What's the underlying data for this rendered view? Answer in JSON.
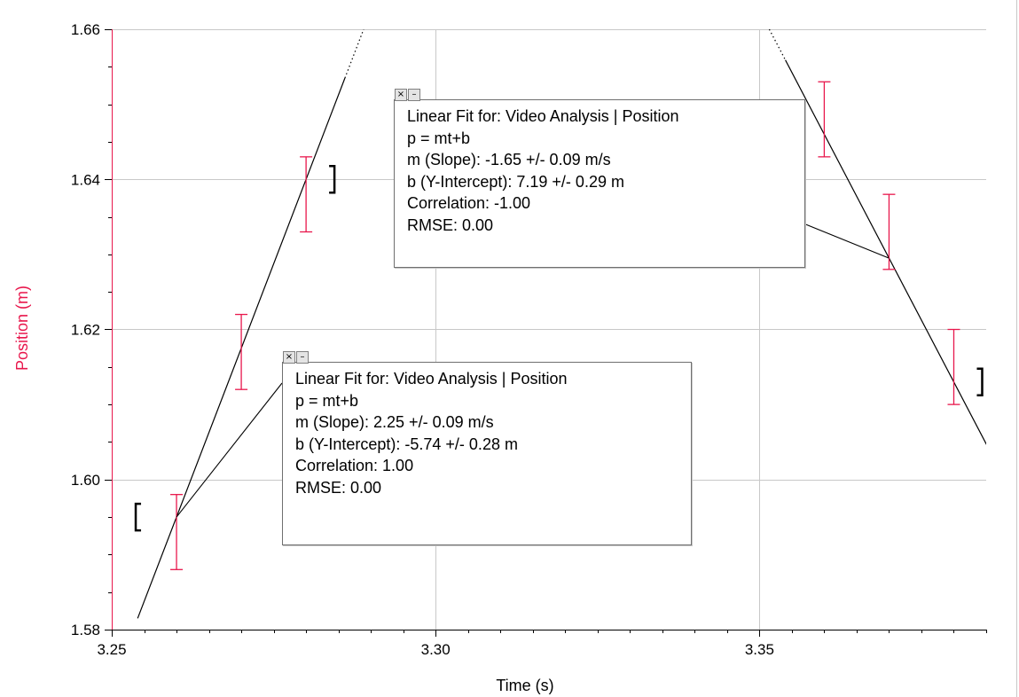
{
  "chart_data": {
    "type": "scatter",
    "xlabel": "Time (s)",
    "ylabel": "Position (m)",
    "xlim": [
      3.25,
      3.385
    ],
    "ylim": [
      1.58,
      1.66
    ],
    "x_ticks": [
      "3.25",
      "3.30",
      "3.35"
    ],
    "y_ticks": [
      "1.58",
      "1.60",
      "1.62",
      "1.64",
      "1.66"
    ],
    "grid": true,
    "series": [
      {
        "x": [
          3.26,
          3.27,
          3.28,
          3.36,
          3.37,
          3.38
        ],
        "y": [
          1.593,
          1.617,
          1.638,
          1.648,
          1.633,
          1.615
        ],
        "y_error": 0.005,
        "color": "#e8174c"
      }
    ],
    "fits": [
      {
        "label": "Linear Fit for:  Video Analysis | Position",
        "equation": "p = mt+b",
        "slope": "m (Slope): 2.25 +/- 0.09 m/s",
        "intercept": "b (Y-Intercept): -5.74 +/- 0.28 m",
        "correlation": "Correlation: 1.00",
        "rmse": "RMSE: 0.00",
        "m": 2.25,
        "b": -5.74,
        "x_range": [
          3.26,
          3.28
        ]
      },
      {
        "label": "Linear Fit for:  Video Analysis | Position",
        "equation": "p = mt+b",
        "slope": "m (Slope): -1.65 +/- 0.09 m/s",
        "intercept": "b (Y-Intercept): 7.19 +/- 0.29 m",
        "correlation": "Correlation: -1.00",
        "rmse": "RMSE: 0.00",
        "m": -1.65,
        "b": 7.19,
        "x_range": [
          3.36,
          3.38
        ]
      }
    ],
    "axis_color": "#e8174c"
  },
  "controls": {
    "close_symbol": "×",
    "minimize_symbol": "–"
  }
}
